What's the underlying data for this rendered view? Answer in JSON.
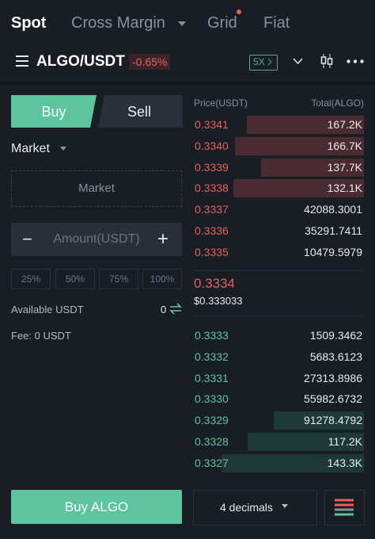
{
  "tabs": [
    "Spot",
    "Cross Margin",
    "Grid",
    "Fiat"
  ],
  "pair": {
    "symbol": "ALGO/USDT",
    "change": "-0.65%",
    "leverage": "5X"
  },
  "form": {
    "buy": "Buy",
    "sell": "Sell",
    "order_type": "Market",
    "price_placeholder": "Market",
    "amount_placeholder": "Amount(USDT)",
    "percentages": [
      "25%",
      "50%",
      "75%",
      "100%"
    ],
    "available_label": "Available USDT",
    "available_value": "0",
    "fee": "Fee: 0 USDT",
    "submit": "Buy ALGO"
  },
  "order_book": {
    "headers": [
      "Price(USDT)",
      "Total(ALGO)"
    ],
    "asks": [
      [
        "0.3341",
        "167.2K"
      ],
      [
        "0.3340",
        "166.7K"
      ],
      [
        "0.3339",
        "137.7K"
      ],
      [
        "0.3338",
        "132.1K"
      ],
      [
        "0.3337",
        "42088.3001"
      ],
      [
        "0.3336",
        "35291.7411"
      ],
      [
        "0.3335",
        "10479.5979"
      ]
    ],
    "last_price": "0.3334",
    "last_price_usd": "$0.333033",
    "bids": [
      [
        "0.3333",
        "1509.3462"
      ],
      [
        "0.3332",
        "5683.6123"
      ],
      [
        "0.3331",
        "27313.8986"
      ],
      [
        "0.3330",
        "55982.6732"
      ],
      [
        "0.3329",
        "91278.4792"
      ],
      [
        "0.3328",
        "117.2K"
      ],
      [
        "0.3327",
        "143.3K"
      ]
    ],
    "decimals": "4 decimals"
  }
}
